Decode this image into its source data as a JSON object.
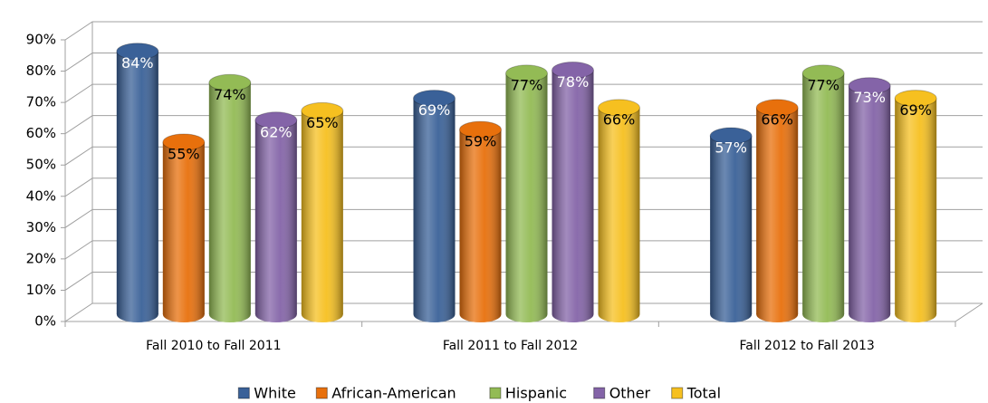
{
  "chart_data": {
    "type": "bar3d",
    "categories": [
      "Fall 2010 to Fall 2011",
      "Fall 2011 to Fall 2012",
      "Fall 2012 to Fall 2013"
    ],
    "series": [
      {
        "name": "White",
        "color": "#3a6198",
        "values": [
          84,
          69,
          57
        ],
        "value_labels": [
          "84%",
          "69%",
          "57%"
        ]
      },
      {
        "name": "African-American",
        "color": "#e8700c",
        "values": [
          55,
          59,
          66
        ],
        "value_labels": [
          "55%",
          "59%",
          "66%"
        ]
      },
      {
        "name": "Hispanic",
        "color": "#93bb55",
        "values": [
          74,
          77,
          77
        ],
        "value_labels": [
          "74%",
          "77%",
          "77%"
        ]
      },
      {
        "name": "Other",
        "color": "#8464a8",
        "values": [
          62,
          78,
          73
        ],
        "value_labels": [
          "62%",
          "78%",
          "73%"
        ]
      },
      {
        "name": "Total",
        "color": "#f6c020",
        "values": [
          65,
          66,
          69
        ],
        "value_labels": [
          "65%",
          "66%",
          "69%"
        ]
      }
    ],
    "ylim": [
      0,
      90
    ],
    "yticks": [
      {
        "value": 0,
        "label": "0%"
      },
      {
        "value": 10,
        "label": "10%"
      },
      {
        "value": 20,
        "label": "20%"
      },
      {
        "value": 30,
        "label": "30%"
      },
      {
        "value": 40,
        "label": "40%"
      },
      {
        "value": 50,
        "label": "50%"
      },
      {
        "value": 60,
        "label": "60%"
      },
      {
        "value": 70,
        "label": "70%"
      },
      {
        "value": 80,
        "label": "80%"
      },
      {
        "value": 90,
        "label": "90%"
      }
    ],
    "grid": true,
    "legend": "bottom"
  }
}
